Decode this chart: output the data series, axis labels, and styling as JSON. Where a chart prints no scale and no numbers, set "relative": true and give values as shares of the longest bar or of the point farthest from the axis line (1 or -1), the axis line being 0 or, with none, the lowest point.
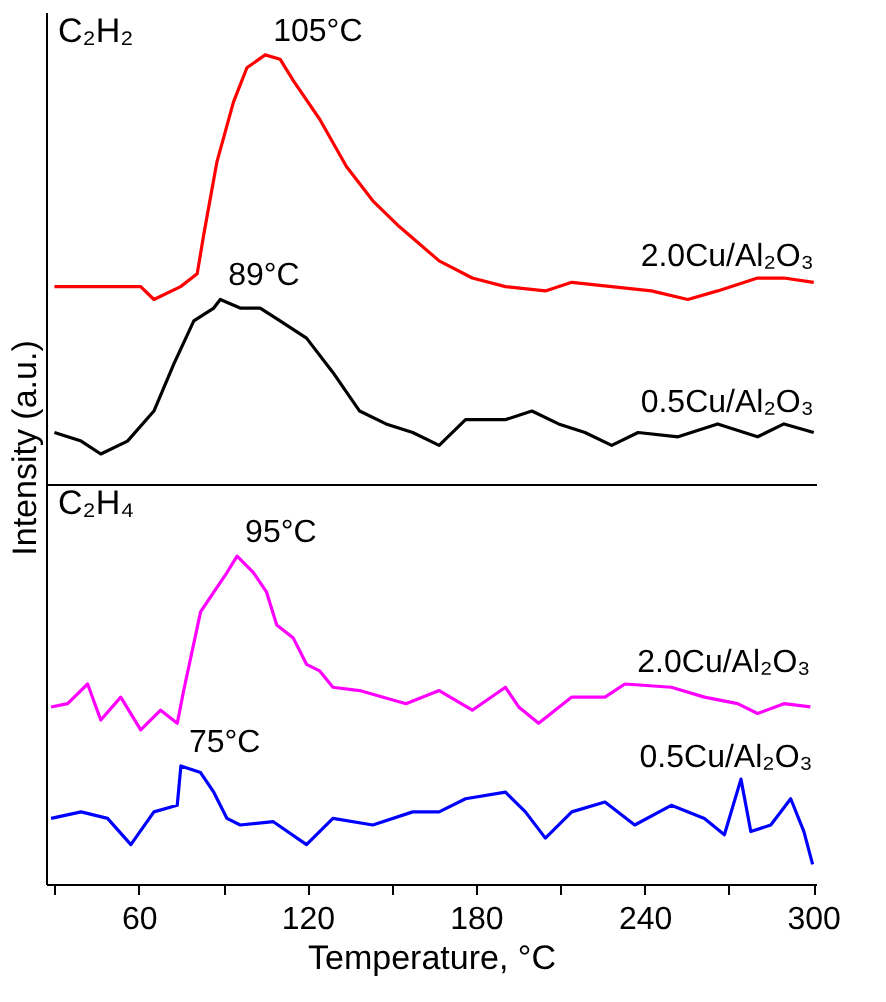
{
  "chart_data": [
    {
      "type": "line",
      "title": "C₂H₂",
      "ylabel": "Intensity (a.u.)",
      "relative": true,
      "xlim": [
        27,
        301
      ],
      "tick_labels": false,
      "series": [
        {
          "name": "2.0Cu/Al₂O₃",
          "color": "#ff0000",
          "x": [
            30,
            60.7,
            65.4,
            74.9,
            80.8,
            83.1,
            87.8,
            93.7,
            98.5,
            105,
            110.3,
            115,
            124.4,
            133.9,
            143.3,
            152.7,
            166.9,
            178.7,
            190.5,
            204.7,
            214.1,
            228.3,
            242.4,
            255.4,
            266,
            280.2,
            289.6,
            300.2
          ],
          "values": [
            0.46,
            0.46,
            0.43,
            0.46,
            0.49,
            0.58,
            0.75,
            0.89,
            0.97,
            1.0,
            0.99,
            0.94,
            0.85,
            0.74,
            0.66,
            0.6,
            0.52,
            0.48,
            0.46,
            0.45,
            0.47,
            0.46,
            0.45,
            0.43,
            0.45,
            0.48,
            0.48,
            0.47
          ]
        },
        {
          "name": "0.5Cu/Al₂O₃",
          "color": "#000000",
          "x": [
            30,
            39.5,
            46.5,
            56,
            65.4,
            72.5,
            79.6,
            86.7,
            89,
            96.1,
            103.2,
            110.3,
            119.7,
            129.1,
            138.6,
            148,
            157.5,
            166.9,
            176.3,
            190.5,
            199.9,
            209.4,
            218.8,
            228.3,
            237.7,
            251.9,
            266,
            280.2,
            289.6,
            300.2
          ],
          "values": [
            0.12,
            0.1,
            0.07,
            0.1,
            0.17,
            0.28,
            0.38,
            0.41,
            0.43,
            0.41,
            0.41,
            0.38,
            0.34,
            0.26,
            0.17,
            0.14,
            0.12,
            0.09,
            0.15,
            0.15,
            0.17,
            0.14,
            0.12,
            0.09,
            0.12,
            0.11,
            0.14,
            0.11,
            0.14,
            0.12
          ]
        }
      ],
      "annotations": [
        {
          "text": "105°C",
          "x": 105,
          "y": 1.0
        },
        {
          "text": "89°C",
          "x": 89,
          "y": 0.43
        }
      ]
    },
    {
      "type": "line",
      "title": "C₂H₄",
      "xlabel": "Temperature, °C",
      "relative": true,
      "xlim": [
        27,
        301
      ],
      "xticks": [
        {
          "value": 30,
          "label": null
        },
        60,
        {
          "value": 90,
          "label": null
        },
        120,
        {
          "value": 150,
          "label": null
        },
        180,
        {
          "value": 210,
          "label": null
        },
        240,
        {
          "value": 270,
          "label": null
        },
        300
      ],
      "tick_labels": "x",
      "series": [
        {
          "name": "2.0Cu/Al₂O₃",
          "color": "#ff00ff",
          "x": [
            28.8,
            34.7,
            41.8,
            46.5,
            53.6,
            60.7,
            67.8,
            73.7,
            76,
            82,
            86.7,
            91.4,
            95,
            100.8,
            105.5,
            109.1,
            115,
            119.7,
            124.4,
            129.1,
            138.6,
            155.1,
            166.9,
            178.7,
            190.5,
            195.2,
            202.3,
            214.1,
            225.9,
            233,
            249.5,
            261.3,
            273.1,
            280.2,
            289.6,
            299
          ],
          "values": [
            0.54,
            0.55,
            0.61,
            0.5,
            0.57,
            0.47,
            0.53,
            0.49,
            0.59,
            0.83,
            0.89,
            0.95,
            1.0,
            0.95,
            0.89,
            0.79,
            0.75,
            0.67,
            0.65,
            0.6,
            0.59,
            0.55,
            0.59,
            0.53,
            0.6,
            0.54,
            0.49,
            0.57,
            0.57,
            0.61,
            0.6,
            0.57,
            0.55,
            0.52,
            0.55,
            0.54
          ]
        },
        {
          "name": "0.5Cu/Al₂O₃",
          "color": "#0000ff",
          "x": [
            28.8,
            39.5,
            48.9,
            57.2,
            65.4,
            73.7,
            75,
            82,
            86.7,
            91.4,
            96.1,
            107.9,
            119.7,
            129.1,
            143.3,
            157.5,
            166.9,
            176.3,
            190.5,
            197.6,
            204.7,
            214.1,
            225.9,
            236.5,
            249.5,
            261.3,
            268.4,
            274.3,
            277.8,
            284.9,
            292,
            296.7,
            299.8
          ],
          "values": [
            0.2,
            0.22,
            0.2,
            0.12,
            0.22,
            0.24,
            0.36,
            0.34,
            0.28,
            0.2,
            0.18,
            0.19,
            0.12,
            0.2,
            0.18,
            0.22,
            0.22,
            0.26,
            0.28,
            0.22,
            0.14,
            0.22,
            0.25,
            0.18,
            0.24,
            0.2,
            0.15,
            0.32,
            0.16,
            0.18,
            0.26,
            0.16,
            0.06
          ]
        }
      ],
      "annotations": [
        {
          "text": "95°C",
          "x": 95,
          "y": 1.0
        },
        {
          "text": "75°C",
          "x": 75,
          "y": 0.36
        }
      ]
    }
  ]
}
